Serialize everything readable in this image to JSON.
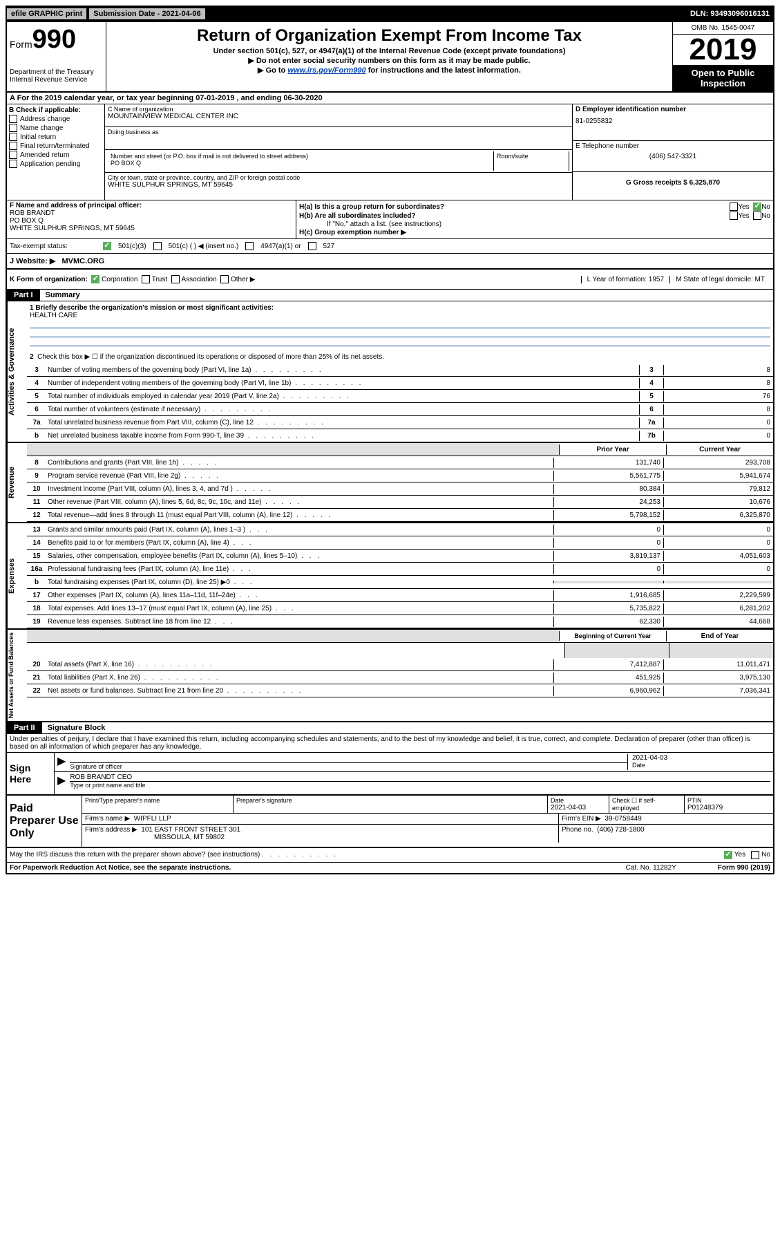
{
  "topbar": {
    "efile_btn": "efile GRAPHIC print",
    "submission_label": "Submission Date - 2021-04-06",
    "dln": "DLN: 93493096016131"
  },
  "header": {
    "form_prefix": "Form",
    "form_number": "990",
    "dept": "Department of the Treasury",
    "irs": "Internal Revenue Service",
    "title": "Return of Organization Exempt From Income Tax",
    "sub1": "Under section 501(c), 527, or 4947(a)(1) of the Internal Revenue Code (except private foundations)",
    "sub2": "▶ Do not enter social security numbers on this form as it may be made public.",
    "sub3_prefix": "▶ Go to ",
    "sub3_link": "www.irs.gov/Form990",
    "sub3_suffix": " for instructions and the latest information.",
    "omb": "OMB No. 1545-0047",
    "year": "2019",
    "open_public": "Open to Public Inspection"
  },
  "row_a": "A For the 2019 calendar year, or tax year beginning 07-01-2019   , and ending 06-30-2020",
  "col_b": {
    "label": "B Check if applicable:",
    "opts": [
      "Address change",
      "Name change",
      "Initial return",
      "Final return/terminated",
      "Amended return",
      "Application pending"
    ]
  },
  "name_block": {
    "c_label": "C Name of organization",
    "c_value": "MOUNTAINVIEW MEDICAL CENTER INC",
    "dba_label": "Doing business as",
    "addr_label": "Number and street (or P.O. box if mail is not delivered to street address)",
    "addr_value": "PO BOX Q",
    "suite_label": "Room/suite",
    "city_label": "City or town, state or province, country, and ZIP or foreign postal code",
    "city_value": "WHITE SULPHUR SPRINGS, MT  59645",
    "d_label": "D Employer identification number",
    "d_value": "81-0255832",
    "e_label": "E Telephone number",
    "e_value": "(406) 547-3321",
    "g_label": "G Gross receipts $ 6,325,870"
  },
  "row_f": {
    "f_label": "F Name and address of principal officer:",
    "f_name": "ROB BRANDT",
    "f_addr": "PO BOX Q",
    "f_city": "WHITE SULPHUR SPRINGS, MT  59645"
  },
  "row_h": {
    "ha": "H(a)  Is this a group return for subordinates?",
    "hb": "H(b)  Are all subordinates included?",
    "hb_note": "If \"No,\" attach a list. (see instructions)",
    "hc": "H(c)  Group exemption number ▶",
    "yes": "Yes",
    "no": "No"
  },
  "tax_status": {
    "label": "Tax-exempt status:",
    "opt1": "501(c)(3)",
    "opt2": "501(c) (   ) ◀ (insert no.)",
    "opt3": "4947(a)(1) or",
    "opt4": "527"
  },
  "row_j": {
    "label": "J   Website: ▶",
    "value": "MVMC.ORG"
  },
  "row_klm": {
    "k_label": "K Form of organization:",
    "k_opts": [
      "Corporation",
      "Trust",
      "Association",
      "Other ▶"
    ],
    "l": "L Year of formation: 1957",
    "m": "M State of legal domicile: MT"
  },
  "part1": {
    "label": "Part I",
    "title": "Summary"
  },
  "governance": {
    "vert": "Activities & Governance",
    "line1_label": "1  Briefly describe the organization's mission or most significant activities:",
    "line1_value": "HEALTH CARE",
    "line2": "Check this box ▶ ☐  if the organization discontinued its operations or disposed of more than 25% of its net assets.",
    "lines": [
      {
        "num": "3",
        "text": "Number of voting members of the governing body (Part VI, line 1a)",
        "small": "3",
        "val": "8"
      },
      {
        "num": "4",
        "text": "Number of independent voting members of the governing body (Part VI, line 1b)",
        "small": "4",
        "val": "8"
      },
      {
        "num": "5",
        "text": "Total number of individuals employed in calendar year 2019 (Part V, line 2a)",
        "small": "5",
        "val": "76"
      },
      {
        "num": "6",
        "text": "Total number of volunteers (estimate if necessary)",
        "small": "6",
        "val": "8"
      },
      {
        "num": "7a",
        "text": "Total unrelated business revenue from Part VIII, column (C), line 12",
        "small": "7a",
        "val": "0"
      },
      {
        "num": "b",
        "text": "Net unrelated business taxable income from Form 990-T, line 39",
        "small": "7b",
        "val": "0"
      }
    ]
  },
  "revenue": {
    "vert": "Revenue",
    "hdr_prior": "Prior Year",
    "hdr_current": "Current Year",
    "lines": [
      {
        "num": "8",
        "text": "Contributions and grants (Part VIII, line 1h)",
        "prior": "131,740",
        "curr": "293,708"
      },
      {
        "num": "9",
        "text": "Program service revenue (Part VIII, line 2g)",
        "prior": "5,561,775",
        "curr": "5,941,674"
      },
      {
        "num": "10",
        "text": "Investment income (Part VIII, column (A), lines 3, 4, and 7d )",
        "prior": "80,384",
        "curr": "79,812"
      },
      {
        "num": "11",
        "text": "Other revenue (Part VIII, column (A), lines 5, 6d, 8c, 9c, 10c, and 11e)",
        "prior": "24,253",
        "curr": "10,676"
      },
      {
        "num": "12",
        "text": "Total revenue—add lines 8 through 11 (must equal Part VIII, column (A), line 12)",
        "prior": "5,798,152",
        "curr": "6,325,870"
      }
    ]
  },
  "expenses": {
    "vert": "Expenses",
    "lines": [
      {
        "num": "13",
        "text": "Grants and similar amounts paid (Part IX, column (A), lines 1–3 )",
        "prior": "0",
        "curr": "0"
      },
      {
        "num": "14",
        "text": "Benefits paid to or for members (Part IX, column (A), line 4)",
        "prior": "0",
        "curr": "0"
      },
      {
        "num": "15",
        "text": "Salaries, other compensation, employee benefits (Part IX, column (A), lines 5–10)",
        "prior": "3,819,137",
        "curr": "4,051,603"
      },
      {
        "num": "16a",
        "text": "Professional fundraising fees (Part IX, column (A), line 11e)",
        "prior": "0",
        "curr": "0"
      },
      {
        "num": "b",
        "text": "Total fundraising expenses (Part IX, column (D), line 25) ▶0",
        "prior": "",
        "curr": "",
        "shaded": true
      },
      {
        "num": "17",
        "text": "Other expenses (Part IX, column (A), lines 11a–11d, 11f–24e)",
        "prior": "1,916,685",
        "curr": "2,229,599"
      },
      {
        "num": "18",
        "text": "Total expenses. Add lines 13–17 (must equal Part IX, column (A), line 25)",
        "prior": "5,735,822",
        "curr": "6,281,202"
      },
      {
        "num": "19",
        "text": "Revenue less expenses. Subtract line 18 from line 12",
        "prior": "62,330",
        "curr": "44,668"
      }
    ]
  },
  "netassets": {
    "vert": "Net Assets or Fund Balances",
    "hdr_begin": "Beginning of Current Year",
    "hdr_end": "End of Year",
    "lines": [
      {
        "num": "20",
        "text": "Total assets (Part X, line 16)",
        "prior": "7,412,887",
        "curr": "11,011,471"
      },
      {
        "num": "21",
        "text": "Total liabilities (Part X, line 26)",
        "prior": "451,925",
        "curr": "3,975,130"
      },
      {
        "num": "22",
        "text": "Net assets or fund balances. Subtract line 21 from line 20",
        "prior": "6,960,962",
        "curr": "7,036,341"
      }
    ]
  },
  "part2": {
    "label": "Part II",
    "title": "Signature Block"
  },
  "sig": {
    "declaration": "Under penalties of perjury, I declare that I have examined this return, including accompanying schedules and statements, and to the best of my knowledge and belief, it is true, correct, and complete. Declaration of preparer (other than officer) is based on all information of which preparer has any knowledge.",
    "sign_here": "Sign Here",
    "sig_officer_label": "Signature of officer",
    "date_label": "Date",
    "date_value": "2021-04-03",
    "name_value": "ROB BRANDT CEO",
    "name_label": "Type or print name and title"
  },
  "paid_prep": {
    "label": "Paid Preparer Use Only",
    "print_name_label": "Print/Type preparer's name",
    "prep_sig_label": "Preparer's signature",
    "date_label": "Date",
    "date_value": "2021-04-03",
    "check_self": "Check ☐ if self-employed",
    "ptin_label": "PTIN",
    "ptin_value": "P01248379",
    "firm_name_label": "Firm's name    ▶",
    "firm_name_value": "WIPFLI LLP",
    "firm_ein_label": "Firm's EIN ▶",
    "firm_ein_value": "39-0758449",
    "firm_addr_label": "Firm's address ▶",
    "firm_addr_value": "101 EAST FRONT STREET 301",
    "firm_city": "MISSOULA, MT  59802",
    "phone_label": "Phone no.",
    "phone_value": "(406) 728-1800"
  },
  "irs_discuss": {
    "text": "May the IRS discuss this return with the preparer shown above? (see instructions)",
    "yes": "Yes",
    "no": "No"
  },
  "footer": {
    "left": "For Paperwork Reduction Act Notice, see the separate instructions.",
    "center": "Cat. No. 11282Y",
    "right": "Form 990 (2019)"
  }
}
